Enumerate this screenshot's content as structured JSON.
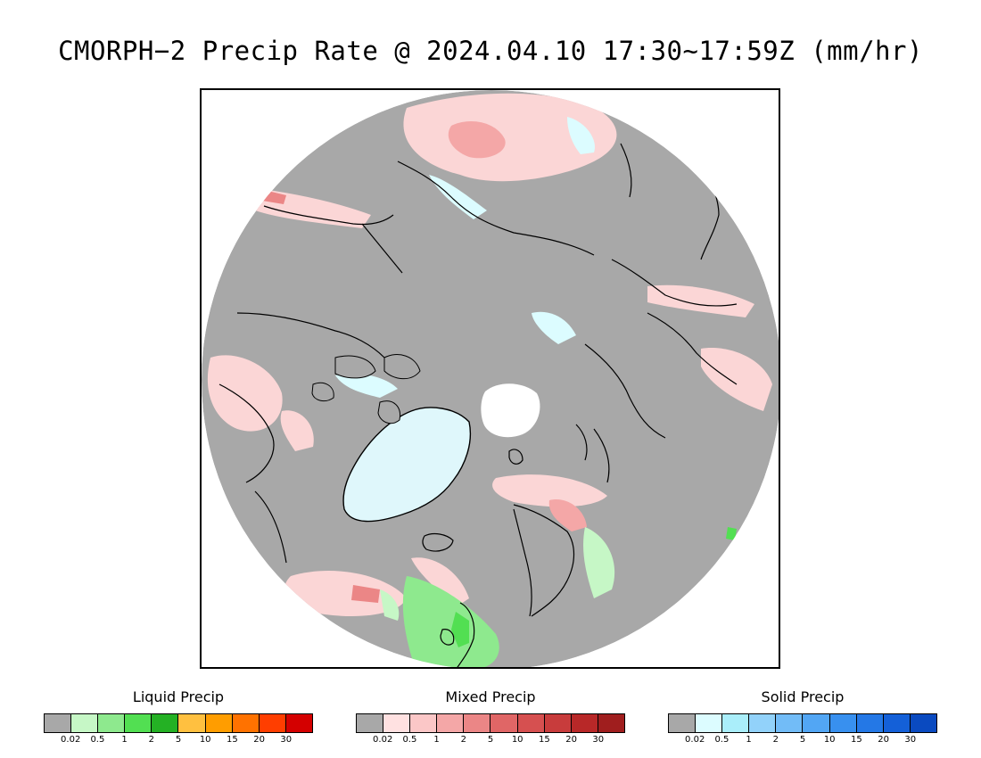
{
  "title": "CMORPH−2 Precip Rate @ 2024.04.10 17:30~17:59Z (mm/hr)",
  "map": {
    "projection": "north polar stereographic",
    "colors": {
      "ocean_land_no_precip": "#a8a8a8",
      "frame": "#000000",
      "coast": "#000000",
      "greenland_ice": "#dff7fb",
      "pole_hole": "#ffffff"
    }
  },
  "legends": [
    {
      "id": "liquid",
      "title": "Liquid Precip",
      "colors": [
        "#a8a8a8",
        "#c6f7c6",
        "#8ee98e",
        "#52df52",
        "#24b124",
        "#ffc040",
        "#ff9d00",
        "#ff7200",
        "#ff3e00",
        "#d40000"
      ],
      "ticks": [
        "0.02",
        "0.5",
        "1",
        "2",
        "5",
        "10",
        "15",
        "20",
        "30"
      ]
    },
    {
      "id": "mixed",
      "title": "Mixed Precip",
      "colors": [
        "#a8a8a8",
        "#ffe1e1",
        "#fbc7c7",
        "#f4a7a7",
        "#eb8686",
        "#e06666",
        "#d65050",
        "#c83c3c",
        "#b82828",
        "#a01e1e"
      ],
      "ticks": [
        "0.02",
        "0.5",
        "1",
        "2",
        "5",
        "10",
        "15",
        "20",
        "30"
      ]
    },
    {
      "id": "solid",
      "title": "Solid Precip",
      "colors": [
        "#a8a8a8",
        "#dcfcff",
        "#aaeefa",
        "#92d2fa",
        "#72bcf7",
        "#52a6f4",
        "#3890ef",
        "#2478e6",
        "#1460d8",
        "#0a4ac0"
      ],
      "ticks": [
        "0.02",
        "0.5",
        "1",
        "2",
        "5",
        "10",
        "15",
        "20",
        "30"
      ]
    }
  ]
}
